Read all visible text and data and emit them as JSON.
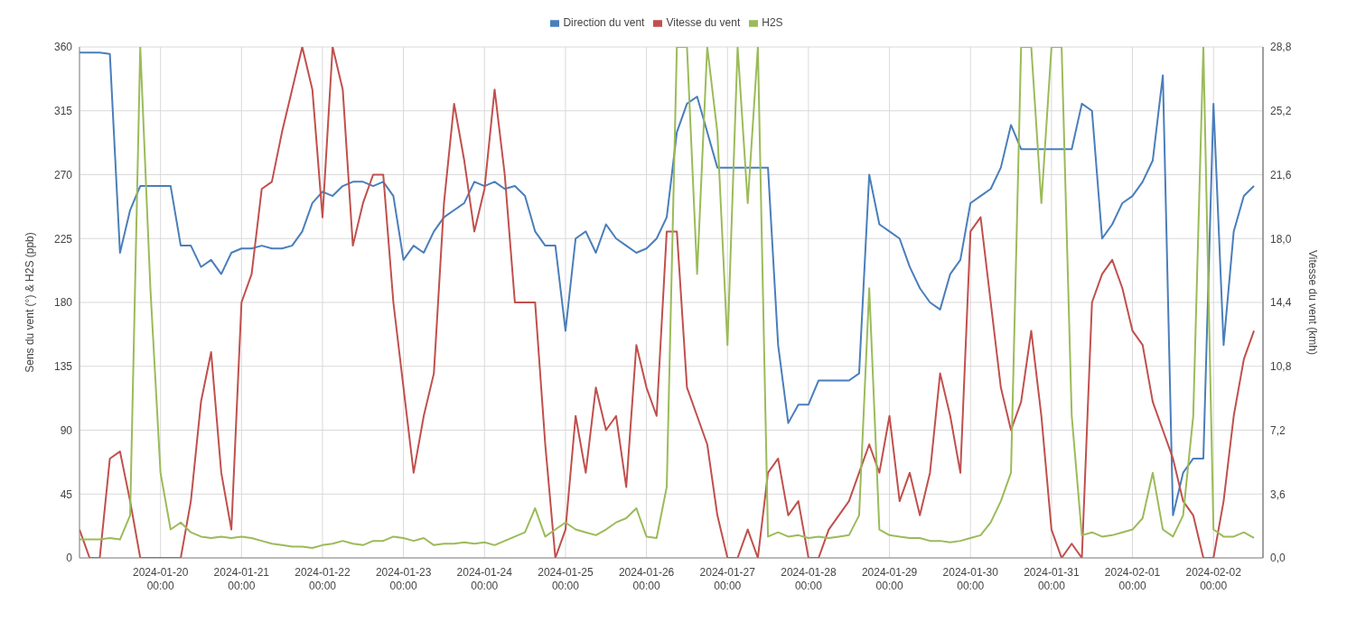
{
  "chart_data": {
    "type": "line",
    "ylabel": "Sens du vent (°) & H2S (ppb)",
    "y2label": "Vitesse du vent (kmh)",
    "legend": "top",
    "grid": true,
    "marker": "none",
    "line_style": "solid",
    "x": [
      "2024-01-19T00:00",
      "2024-01-19T03:00",
      "2024-01-19T06:00",
      "2024-01-19T09:00",
      "2024-01-19T12:00",
      "2024-01-19T15:00",
      "2024-01-19T18:00",
      "2024-01-19T21:00",
      "2024-01-20T00:00",
      "2024-01-20T03:00",
      "2024-01-20T06:00",
      "2024-01-20T09:00",
      "2024-01-20T12:00",
      "2024-01-20T15:00",
      "2024-01-20T18:00",
      "2024-01-20T21:00",
      "2024-01-21T00:00",
      "2024-01-21T03:00",
      "2024-01-21T06:00",
      "2024-01-21T09:00",
      "2024-01-21T12:00",
      "2024-01-21T15:00",
      "2024-01-21T18:00",
      "2024-01-21T21:00",
      "2024-01-22T00:00",
      "2024-01-22T03:00",
      "2024-01-22T06:00",
      "2024-01-22T09:00",
      "2024-01-22T12:00",
      "2024-01-22T15:00",
      "2024-01-22T18:00",
      "2024-01-22T21:00",
      "2024-01-23T00:00",
      "2024-01-23T03:00",
      "2024-01-23T06:00",
      "2024-01-23T09:00",
      "2024-01-23T12:00",
      "2024-01-23T15:00",
      "2024-01-23T18:00",
      "2024-01-23T21:00",
      "2024-01-24T00:00",
      "2024-01-24T03:00",
      "2024-01-24T06:00",
      "2024-01-24T09:00",
      "2024-01-24T12:00",
      "2024-01-24T15:00",
      "2024-01-24T18:00",
      "2024-01-24T21:00",
      "2024-01-25T00:00",
      "2024-01-25T03:00",
      "2024-01-25T06:00",
      "2024-01-25T09:00",
      "2024-01-25T12:00",
      "2024-01-25T15:00",
      "2024-01-25T18:00",
      "2024-01-25T21:00",
      "2024-01-26T00:00",
      "2024-01-26T03:00",
      "2024-01-26T06:00",
      "2024-01-26T09:00",
      "2024-01-26T12:00",
      "2024-01-26T15:00",
      "2024-01-26T18:00",
      "2024-01-26T21:00",
      "2024-01-27T00:00",
      "2024-01-27T03:00",
      "2024-01-27T06:00",
      "2024-01-27T09:00",
      "2024-01-27T12:00",
      "2024-01-27T15:00",
      "2024-01-27T18:00",
      "2024-01-27T21:00",
      "2024-01-28T00:00",
      "2024-01-28T03:00",
      "2024-01-28T06:00",
      "2024-01-28T09:00",
      "2024-01-28T12:00",
      "2024-01-28T15:00",
      "2024-01-28T18:00",
      "2024-01-28T21:00",
      "2024-01-29T00:00",
      "2024-01-29T03:00",
      "2024-01-29T06:00",
      "2024-01-29T09:00",
      "2024-01-29T12:00",
      "2024-01-29T15:00",
      "2024-01-29T18:00",
      "2024-01-29T21:00",
      "2024-01-30T00:00",
      "2024-01-30T03:00",
      "2024-01-30T06:00",
      "2024-01-30T09:00",
      "2024-01-30T12:00",
      "2024-01-30T15:00",
      "2024-01-30T18:00",
      "2024-01-30T21:00",
      "2024-01-31T00:00",
      "2024-01-31T03:00",
      "2024-01-31T06:00",
      "2024-01-31T09:00",
      "2024-01-31T12:00",
      "2024-01-31T15:00",
      "2024-01-31T18:00",
      "2024-01-31T21:00",
      "2024-02-01T00:00",
      "2024-02-01T03:00",
      "2024-02-01T06:00",
      "2024-02-01T09:00",
      "2024-02-01T12:00",
      "2024-02-01T15:00",
      "2024-02-01T18:00",
      "2024-02-01T21:00",
      "2024-02-02T00:00",
      "2024-02-02T03:00",
      "2024-02-02T06:00",
      "2024-02-02T09:00",
      "2024-02-02T12:00"
    ],
    "xlim": [
      "2024-01-19T00:00",
      "2024-02-02T14:40"
    ],
    "xticks": [
      {
        "value": "2024-01-20T00:00",
        "label": "2024-01-20 00:00"
      },
      {
        "value": "2024-01-21T00:00",
        "label": "2024-01-21 00:00"
      },
      {
        "value": "2024-01-22T00:00",
        "label": "2024-01-22 00:00"
      },
      {
        "value": "2024-01-23T00:00",
        "label": "2024-01-23 00:00"
      },
      {
        "value": "2024-01-24T00:00",
        "label": "2024-01-24 00:00"
      },
      {
        "value": "2024-01-25T00:00",
        "label": "2024-01-25 00:00"
      },
      {
        "value": "2024-01-26T00:00",
        "label": "2024-01-26 00:00"
      },
      {
        "value": "2024-01-27T00:00",
        "label": "2024-01-27 00:00"
      },
      {
        "value": "2024-01-28T00:00",
        "label": "2024-01-28 00:00"
      },
      {
        "value": "2024-01-29T00:00",
        "label": "2024-01-29 00:00"
      },
      {
        "value": "2024-01-30T00:00",
        "label": "2024-01-30 00:00"
      },
      {
        "value": "2024-01-31T00:00",
        "label": "2024-01-31 00:00"
      },
      {
        "value": "2024-02-01T00:00",
        "label": "2024-02-01 00:00"
      },
      {
        "value": "2024-02-02T00:00",
        "label": "2024-02-02 00:00"
      }
    ],
    "ylim": [
      0,
      360
    ],
    "yticks": [
      0,
      45,
      90,
      135,
      180,
      225,
      270,
      315,
      360
    ],
    "y2lim": [
      0,
      28.8
    ],
    "y2ticks": [
      {
        "value": 0,
        "label": "0,0"
      },
      {
        "value": 3.6,
        "label": "3,6"
      },
      {
        "value": 7.2,
        "label": "7,2"
      },
      {
        "value": 10.8,
        "label": "10,8"
      },
      {
        "value": 14.4,
        "label": "14,4"
      },
      {
        "value": 18,
        "label": "18,0"
      },
      {
        "value": 21.6,
        "label": "21,6"
      },
      {
        "value": 25.2,
        "label": "25,2"
      },
      {
        "value": 28.8,
        "label": "28,8"
      }
    ],
    "series": [
      {
        "name": "Direction du vent",
        "color": "#4a7ebb",
        "values": [
          356,
          356,
          356,
          355,
          215,
          245,
          262,
          262,
          262,
          262,
          220,
          220,
          205,
          210,
          200,
          215,
          218,
          218,
          220,
          218,
          218,
          220,
          230,
          250,
          258,
          255,
          262,
          265,
          265,
          262,
          265,
          255,
          210,
          220,
          215,
          230,
          240,
          245,
          250,
          265,
          262,
          265,
          260,
          262,
          255,
          230,
          220,
          220,
          160,
          225,
          230,
          215,
          235,
          225,
          220,
          215,
          218,
          225,
          240,
          300,
          320,
          325,
          300,
          275,
          275,
          275,
          275,
          275,
          275,
          150,
          95,
          108,
          108,
          125,
          125,
          125,
          125,
          130,
          270,
          235,
          230,
          225,
          205,
          190,
          180,
          175,
          200,
          210,
          250,
          255,
          260,
          275,
          305,
          288,
          288,
          288,
          288,
          288,
          288,
          320,
          315,
          225,
          235,
          250,
          255,
          265,
          280,
          340,
          30,
          60,
          70,
          70,
          320,
          150,
          230,
          255,
          262
        ]
      },
      {
        "name": "Vitesse du vent",
        "color": "#c0504d",
        "axis": "y2",
        "values": [
          1.6,
          0,
          0,
          5.6,
          6.0,
          3.2,
          0,
          0,
          0,
          0,
          0,
          3.2,
          8.8,
          11.6,
          4.8,
          1.6,
          14.4,
          16.0,
          20.8,
          21.2,
          24.0,
          26.4,
          28.8,
          26.4,
          19.2,
          28.8,
          26.4,
          17.6,
          20.0,
          21.6,
          21.6,
          14.4,
          9.6,
          4.8,
          8.0,
          10.4,
          20.0,
          25.6,
          22.4,
          18.4,
          20.8,
          26.4,
          21.6,
          14.4,
          14.4,
          14.4,
          6.4,
          0,
          1.6,
          8.0,
          4.8,
          9.6,
          7.2,
          8.0,
          4.0,
          12.0,
          9.6,
          8.0,
          18.4,
          18.4,
          9.6,
          8.0,
          6.4,
          2.4,
          0,
          0,
          1.6,
          0,
          4.8,
          5.6,
          2.4,
          3.2,
          0,
          0,
          1.6,
          2.4,
          3.2,
          4.8,
          6.4,
          4.8,
          8.0,
          3.2,
          4.8,
          2.4,
          4.8,
          10.4,
          8.0,
          4.8,
          18.4,
          19.2,
          14.4,
          9.6,
          7.2,
          8.8,
          12.8,
          8.0,
          1.6,
          0,
          0.8,
          0,
          14.4,
          16.0,
          16.8,
          15.2,
          12.8,
          12.0,
          8.8,
          7.2,
          5.6,
          3.2,
          2.4,
          0,
          0,
          3.2,
          8.0,
          11.2,
          12.8
        ]
      },
      {
        "name": "H2S",
        "color": "#9bbb59",
        "values": [
          13,
          13,
          13,
          14,
          13,
          30,
          360,
          190,
          60,
          20,
          25,
          18,
          15,
          14,
          15,
          14,
          15,
          14,
          12,
          10,
          9,
          8,
          8,
          7,
          9,
          10,
          12,
          10,
          9,
          12,
          12,
          15,
          14,
          12,
          14,
          9,
          10,
          10,
          11,
          10,
          11,
          9,
          12,
          15,
          18,
          35,
          15,
          20,
          25,
          20,
          18,
          16,
          20,
          25,
          28,
          35,
          15,
          14,
          50,
          360,
          360,
          200,
          360,
          300,
          150,
          360,
          250,
          360,
          15,
          18,
          15,
          16,
          14,
          15,
          14,
          15,
          16,
          30,
          190,
          20,
          16,
          15,
          14,
          14,
          12,
          12,
          11,
          12,
          14,
          16,
          25,
          40,
          60,
          360,
          360,
          250,
          360,
          360,
          100,
          16,
          18,
          15,
          16,
          18,
          20,
          28,
          60,
          20,
          15,
          30,
          100,
          360,
          20,
          15,
          15,
          18,
          14
        ]
      }
    ]
  }
}
